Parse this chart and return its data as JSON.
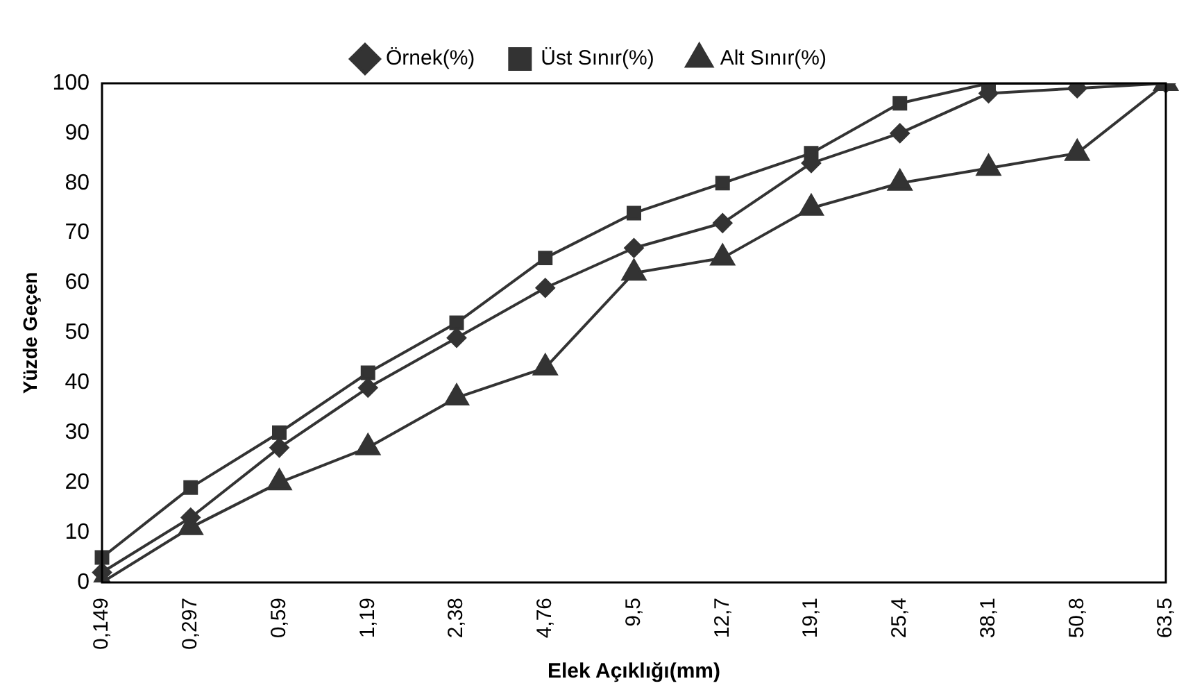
{
  "chart_data": {
    "type": "line",
    "xlabel": "Elek Açıklığı(mm)",
    "ylabel": "Yüzde Geçen",
    "categories": [
      "0,149",
      "0,297",
      "0,59",
      "1,19",
      "2,38",
      "4,76",
      "9,5",
      "12,7",
      "19,1",
      "25,4",
      "38,1",
      "50,8",
      "63,5"
    ],
    "series": [
      {
        "name": "Örnek(%)",
        "color": "#333333",
        "marker": "diamond",
        "values": [
          2,
          13,
          27,
          39,
          49,
          59,
          67,
          72,
          84,
          90,
          98,
          99,
          100
        ]
      },
      {
        "name": "Üst Sınır(%)",
        "color": "#333333",
        "marker": "square",
        "values": [
          5,
          19,
          30,
          42,
          52,
          65,
          74,
          80,
          86,
          96,
          100,
          100,
          100
        ]
      },
      {
        "name": "Alt Sınır(%)",
        "color": "#333333",
        "marker": "triangle",
        "values": [
          0,
          11,
          20,
          27,
          37,
          43,
          62,
          65,
          75,
          80,
          83,
          86,
          100
        ]
      }
    ],
    "ylim": [
      0,
      100
    ],
    "yticks": [
      0,
      10,
      20,
      30,
      40,
      50,
      60,
      70,
      80,
      90,
      100
    ],
    "grid": false,
    "legend": "top"
  }
}
